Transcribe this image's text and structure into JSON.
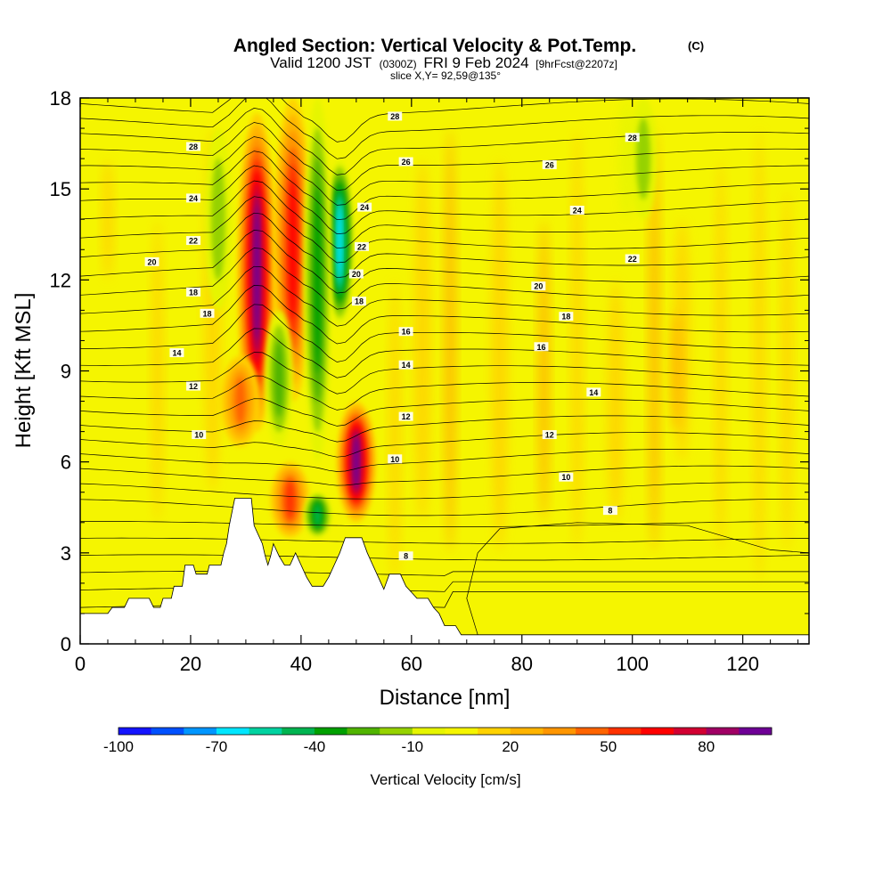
{
  "chart_data": {
    "type": "heatmap",
    "title": "Angled Section: Vertical Velocity & Pot.Temp.",
    "title_suffix": "(C)",
    "subtitle_valid": "Valid 1200 JST",
    "subtitle_utc": "(0300Z)",
    "subtitle_date": "FRI 9 Feb 2024",
    "subtitle_fcst": "[9hrFcst@2207z]",
    "subtitle_slice": "slice X,Y= 92,59@135°",
    "xlabel": "Distance [nm]",
    "ylabel": "Height [Kft MSL]",
    "xlim": [
      0,
      132
    ],
    "ylim": [
      0,
      18
    ],
    "x_ticks": [
      0,
      20,
      40,
      60,
      80,
      100,
      120
    ],
    "y_ticks": [
      0,
      3,
      6,
      9,
      12,
      15,
      18
    ],
    "colorbar": {
      "label": "Vertical Velocity [cm/s]",
      "tick_labels": [
        "-100",
        "-70",
        "-40",
        "-10",
        "20",
        "50",
        "80"
      ],
      "tick_values": [
        -100,
        -70,
        -40,
        -10,
        20,
        50,
        80
      ],
      "levels": [
        -100,
        -90,
        -80,
        -70,
        -60,
        -50,
        -40,
        -30,
        -20,
        -10,
        0,
        10,
        20,
        30,
        40,
        50,
        60,
        70,
        80,
        90
      ],
      "colors": [
        "#1414ff",
        "#0050ff",
        "#0096ff",
        "#00e6ff",
        "#00d2a0",
        "#00b450",
        "#00a000",
        "#50b400",
        "#96d200",
        "#e6f500",
        "#f5f500",
        "#ffd200",
        "#ffb400",
        "#ff9600",
        "#ff6400",
        "#ff3200",
        "#ff0000",
        "#d20032",
        "#a00064",
        "#6e0096"
      ]
    },
    "velocity_features": [
      {
        "kind": "updraft",
        "x": 32,
        "y_range": [
          7,
          17.5
        ],
        "peak_cm_s": 85
      },
      {
        "kind": "updraft",
        "x": 38.5,
        "y_range": [
          8,
          18
        ],
        "peak_cm_s": 60
      },
      {
        "kind": "updraft",
        "x": 50,
        "y_range": [
          4,
          8
        ],
        "peak_cm_s": 85
      },
      {
        "kind": "updraft",
        "x": 38,
        "y_range": [
          3.5,
          6
        ],
        "peak_cm_s": 50
      },
      {
        "kind": "updraft",
        "x": 29,
        "y_range": [
          6.5,
          9.5
        ],
        "peak_cm_s": 40
      },
      {
        "kind": "downdraft",
        "x": 47,
        "y_range": [
          10.5,
          16
        ],
        "peak_cm_s": -70
      },
      {
        "kind": "downdraft",
        "x": 43,
        "y_range": [
          6,
          18
        ],
        "peak_cm_s": -40
      },
      {
        "kind": "downdraft",
        "x": 36,
        "y_range": [
          6.5,
          11
        ],
        "peak_cm_s": -30
      },
      {
        "kind": "downdraft",
        "x": 25,
        "y_range": [
          11,
          17
        ],
        "peak_cm_s": -20
      },
      {
        "kind": "downdraft",
        "x": 102,
        "y_range": [
          14,
          18
        ],
        "peak_cm_s": -20
      },
      {
        "kind": "downdraft",
        "x": 43,
        "y_range": [
          3.5,
          5
        ],
        "peak_cm_s": -50
      }
    ],
    "terrain": [
      [
        0,
        1
      ],
      [
        5,
        1
      ],
      [
        5.8,
        1.2
      ],
      [
        8,
        1.2
      ],
      [
        8.8,
        1.5
      ],
      [
        12.5,
        1.5
      ],
      [
        13.3,
        1.2
      ],
      [
        14.5,
        1.2
      ],
      [
        15,
        1.5
      ],
      [
        16.5,
        1.5
      ],
      [
        17,
        1.9
      ],
      [
        18.5,
        1.9
      ],
      [
        19,
        2.6
      ],
      [
        20.5,
        2.6
      ],
      [
        21,
        2.3
      ],
      [
        23,
        2.3
      ],
      [
        23.4,
        2.6
      ],
      [
        25.5,
        2.6
      ],
      [
        26,
        3
      ],
      [
        26.5,
        3.3
      ],
      [
        27,
        3.9
      ],
      [
        28,
        4.8
      ],
      [
        31,
        4.8
      ],
      [
        31.5,
        3.9
      ],
      [
        33,
        3.3
      ],
      [
        33.5,
        2.9
      ],
      [
        34,
        2.6
      ],
      [
        34.5,
        2.9
      ],
      [
        35,
        3.3
      ],
      [
        36,
        2.9
      ],
      [
        37,
        2.6
      ],
      [
        38,
        2.6
      ],
      [
        39,
        3
      ],
      [
        40,
        2.6
      ],
      [
        41,
        2.2
      ],
      [
        42,
        1.9
      ],
      [
        44,
        1.9
      ],
      [
        45,
        2.2
      ],
      [
        46,
        2.6
      ],
      [
        47,
        3
      ],
      [
        48,
        3.5
      ],
      [
        51,
        3.5
      ],
      [
        52,
        3
      ],
      [
        53,
        2.6
      ],
      [
        54,
        2.2
      ],
      [
        55,
        1.8
      ],
      [
        56,
        2.3
      ],
      [
        58,
        2.3
      ],
      [
        59,
        1.9
      ],
      [
        61,
        1.5
      ],
      [
        63,
        1.5
      ],
      [
        64,
        1.2
      ],
      [
        65,
        1
      ],
      [
        66,
        0.6
      ],
      [
        68,
        0.6
      ],
      [
        69,
        0.3
      ],
      [
        131,
        0.3
      ]
    ],
    "theta_isotherm_labels": [
      {
        "text": "28",
        "x": 57,
        "y": 17.4
      },
      {
        "text": "28",
        "x": 100,
        "y": 16.7
      },
      {
        "text": "28",
        "x": 20.5,
        "y": 16.4
      },
      {
        "text": "26",
        "x": 59,
        "y": 15.9
      },
      {
        "text": "26",
        "x": 85,
        "y": 15.8
      },
      {
        "text": "24",
        "x": 20.5,
        "y": 14.7
      },
      {
        "text": "24",
        "x": 51.5,
        "y": 14.4
      },
      {
        "text": "24",
        "x": 90,
        "y": 14.3
      },
      {
        "text": "22",
        "x": 20.5,
        "y": 13.3
      },
      {
        "text": "22",
        "x": 51,
        "y": 13.1
      },
      {
        "text": "22",
        "x": 100,
        "y": 12.7
      },
      {
        "text": "20",
        "x": 13,
        "y": 12.6
      },
      {
        "text": "20",
        "x": 50,
        "y": 12.2
      },
      {
        "text": "20",
        "x": 83,
        "y": 11.8
      },
      {
        "text": "18",
        "x": 20.5,
        "y": 11.6
      },
      {
        "text": "18",
        "x": 50.5,
        "y": 11.3
      },
      {
        "text": "18",
        "x": 23,
        "y": 10.9
      },
      {
        "text": "18",
        "x": 88,
        "y": 10.8
      },
      {
        "text": "16",
        "x": 59,
        "y": 10.3
      },
      {
        "text": "16",
        "x": 83.5,
        "y": 9.8
      },
      {
        "text": "14",
        "x": 17.5,
        "y": 9.6
      },
      {
        "text": "14",
        "x": 59,
        "y": 9.2
      },
      {
        "text": "14",
        "x": 93,
        "y": 8.3
      },
      {
        "text": "12",
        "x": 20.5,
        "y": 8.5
      },
      {
        "text": "12",
        "x": 59,
        "y": 7.5
      },
      {
        "text": "12",
        "x": 85,
        "y": 6.9
      },
      {
        "text": "10",
        "x": 21.5,
        "y": 6.9
      },
      {
        "text": "10",
        "x": 57,
        "y": 6.1
      },
      {
        "text": "10",
        "x": 88,
        "y": 5.5
      },
      {
        "text": "8",
        "x": 96,
        "y": 4.4
      },
      {
        "text": "8",
        "x": 59,
        "y": 2.9
      }
    ],
    "grid": false,
    "legend": "bottom-colorbar"
  }
}
